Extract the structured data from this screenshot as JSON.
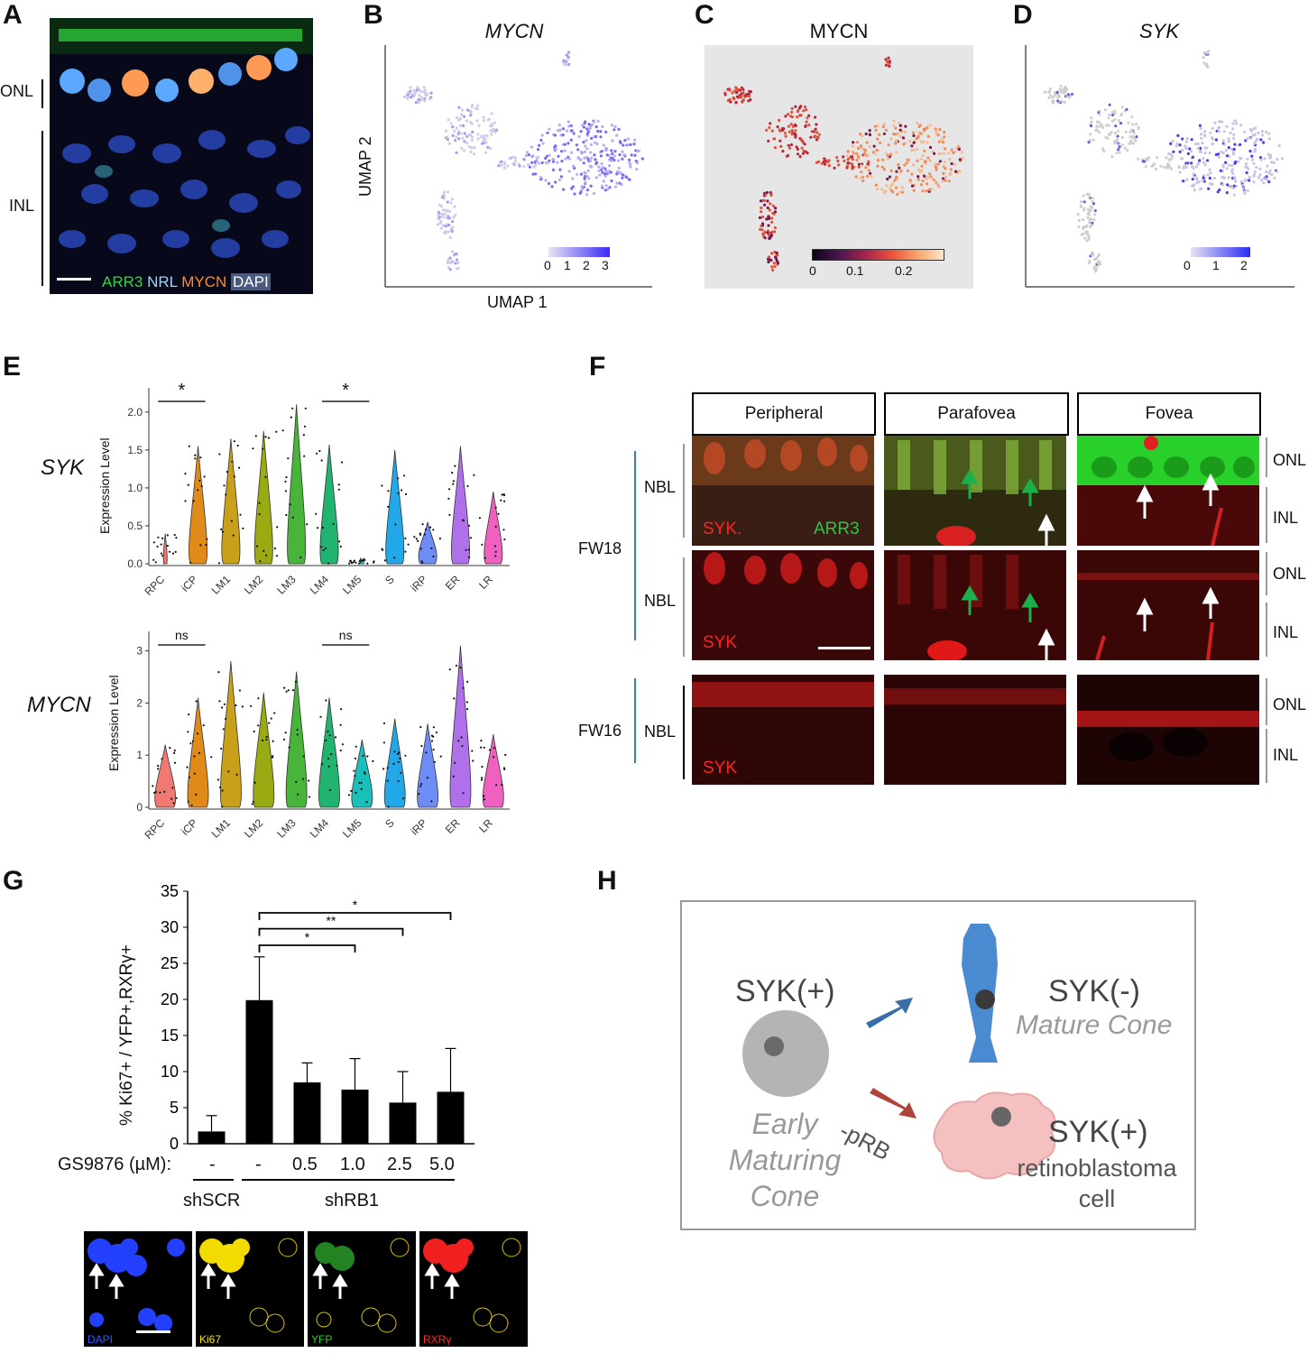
{
  "panels": {
    "A": {
      "label": "A",
      "layer_labels": [
        "ONL",
        "INL"
      ],
      "legend": [
        {
          "text": "ARR3",
          "color": "#39d04a"
        },
        {
          "text": "NRL",
          "color": "#9fd4ff"
        },
        {
          "text": "MYCN",
          "color": "#ff8a2a"
        },
        {
          "text": "DAPI",
          "color": "#ffffff"
        }
      ]
    },
    "B": {
      "label": "B",
      "title": "MYCN",
      "ylabel": "UMAP 2",
      "xlabel": "UMAP 1",
      "scale_ticks": [
        "0",
        "1",
        "2",
        "3"
      ]
    },
    "C": {
      "label": "C",
      "title": "MYCN",
      "scale_ticks": [
        "0",
        "0.1",
        "0.2"
      ]
    },
    "D": {
      "label": "D",
      "title": "SYK",
      "scale_ticks": [
        "0",
        "1",
        "2"
      ]
    },
    "E": {
      "label": "E",
      "gene1": "SYK",
      "gene2": "MYCN",
      "ylabel": "Expression Level",
      "sig1": [
        "*",
        "*"
      ],
      "sig2": [
        "ns",
        "ns"
      ]
    },
    "F": {
      "label": "F",
      "regions": [
        "Peripheral",
        "Parafovea",
        "Fovea"
      ],
      "ages": [
        "FW18",
        "FW16"
      ],
      "zone": "NBL",
      "layers": [
        "ONL",
        "INL"
      ],
      "stain_syk": "SYK",
      "stain_syk_dot": "SYK.",
      "stain_arr3": "ARR3"
    },
    "G": {
      "label": "G",
      "treatment_label": "GS9876 (µM):",
      "doses": [
        "-",
        "-",
        "0.5",
        "1.0",
        "2.5",
        "5.0"
      ],
      "groups": [
        "shSCR",
        "shRB1"
      ],
      "channels": [
        {
          "text": "DAPI",
          "color": "#2f5bff"
        },
        {
          "text": "Ki67",
          "color": "#f5e100"
        },
        {
          "text": "YFP",
          "color": "#2ed12e"
        },
        {
          "text": "RXRγ",
          "color": "#ff2a2a"
        }
      ]
    },
    "H": {
      "label": "H",
      "early_state": "SYK(+)",
      "early_name": [
        "Early",
        "Maturing",
        "Cone"
      ],
      "mature_state": "SYK(-)",
      "mature_name": "Mature Cone",
      "rb_state": "SYK(+)",
      "rb_name": [
        "retinoblastoma",
        "cell"
      ],
      "rb_arrow_label": "-pRB"
    }
  },
  "chart_data": [
    {
      "type": "violin",
      "gene": "SYK",
      "ylabel": "Expression Level",
      "categories": [
        "RPC",
        "iCP",
        "LM1",
        "LM2",
        "LM3",
        "LM4",
        "LM5",
        "S",
        "iRP",
        "ER",
        "LR"
      ],
      "max_values": [
        0.4,
        1.55,
        1.65,
        1.75,
        2.1,
        1.57,
        0.05,
        1.5,
        0.55,
        1.55,
        0.95
      ],
      "yticks": [
        0.0,
        0.5,
        1.0,
        1.5,
        2.0
      ],
      "ylim": [
        0,
        2.2
      ],
      "comparisons": [
        {
          "pair": [
            "RPC",
            "iCP"
          ],
          "sig": "*"
        },
        {
          "pair": [
            "LM4",
            "LM5"
          ],
          "sig": "*"
        }
      ]
    },
    {
      "type": "violin",
      "gene": "MYCN",
      "ylabel": "Expression Level",
      "categories": [
        "RPC",
        "iCP",
        "LM1",
        "LM2",
        "LM3",
        "LM4",
        "LM5",
        "S",
        "iRP",
        "ER",
        "LR"
      ],
      "max_values": [
        1.2,
        2.1,
        2.8,
        2.2,
        2.6,
        2.1,
        1.3,
        1.7,
        1.6,
        3.1,
        1.4
      ],
      "yticks": [
        0,
        1,
        2,
        3
      ],
      "ylim": [
        0,
        3.2
      ],
      "comparisons": [
        {
          "pair": [
            "RPC",
            "iCP"
          ],
          "sig": "ns"
        },
        {
          "pair": [
            "LM4",
            "LM5"
          ],
          "sig": "ns"
        }
      ]
    },
    {
      "type": "bar",
      "ylabel": "% Ki67+ / YFP+,RXRγ+",
      "categories": [
        "shSCR -",
        "shRB1 -",
        "shRB1 0.5",
        "shRB1 1.0",
        "shRB1 2.5",
        "shRB1 5.0"
      ],
      "values": [
        1.7,
        19.9,
        8.5,
        7.5,
        5.7,
        7.2
      ],
      "errors": [
        2.2,
        6.0,
        2.7,
        4.3,
        4.3,
        6.0
      ],
      "yticks": [
        0,
        5,
        10,
        15,
        20,
        25,
        30,
        35
      ],
      "ylim": [
        0,
        35
      ],
      "comparisons": [
        {
          "pair": [
            "shRB1 -",
            "shRB1 1.0"
          ],
          "sig": "*"
        },
        {
          "pair": [
            "shRB1 -",
            "shRB1 2.5"
          ],
          "sig": "**"
        },
        {
          "pair": [
            "shRB1 -",
            "shRB1 5.0"
          ],
          "sig": "*"
        }
      ]
    }
  ]
}
